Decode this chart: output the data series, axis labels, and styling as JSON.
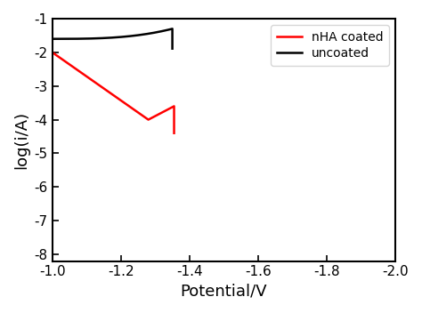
{
  "xlabel": "Potential/V",
  "ylabel": "log(i/A)",
  "xlim": [
    -1.0,
    -2.0
  ],
  "ylim": [
    -8.2,
    -1
  ],
  "yticks": [
    -8,
    -7,
    -6,
    -5,
    -4,
    -3,
    -2,
    -1
  ],
  "xticks": [
    -1.0,
    -1.2,
    -1.4,
    -1.6,
    -1.8,
    -2.0
  ],
  "legend_entries": [
    "nHA coated",
    "uncoated"
  ],
  "line_colors": [
    "red",
    "black"
  ],
  "background_color": "#ffffff",
  "linewidth": 1.8,
  "tick_labelsize": 11,
  "label_fontsize": 13
}
